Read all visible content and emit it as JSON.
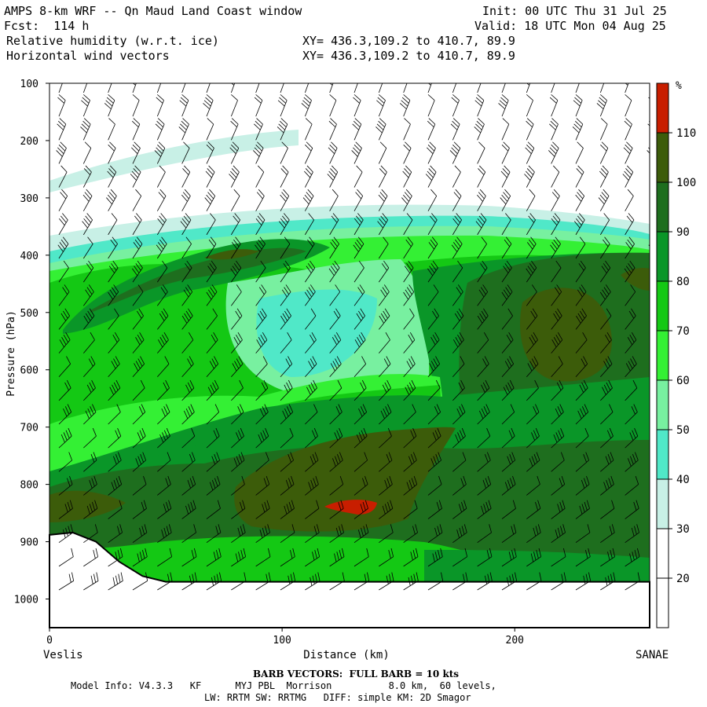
{
  "header": {
    "title": "AMPS 8-km WRF -- Qn Maud Land Coast window",
    "fcst": "Fcst:  114 h",
    "init": "Init: 00 UTC Thu 31 Jul 25",
    "valid": "Valid: 18 UTC Mon 04 Aug 25",
    "field1": "Relative humidity (w.r.t. ice)",
    "field2": "Horizontal wind vectors",
    "xy1": "XY= 436.3,109.2 to 410.7, 89.9",
    "xy2": "XY= 436.3,109.2 to 410.7, 89.9"
  },
  "chart_data": {
    "type": "filled-contour cross-section",
    "xlabel": "Distance (km)",
    "ylabel": "Pressure (hPa)",
    "x_start_label": "Veslis",
    "x_end_label": "SANAE",
    "xlim": [
      0,
      258
    ],
    "ylim": [
      1050,
      100
    ],
    "x_ticks": [
      0,
      100,
      200
    ],
    "y_ticks": [
      100,
      200,
      300,
      400,
      500,
      600,
      700,
      800,
      900,
      1000
    ],
    "colorbar": {
      "unit": "%",
      "levels": [
        20,
        30,
        40,
        50,
        60,
        70,
        80,
        90,
        100,
        110
      ],
      "colors": [
        "#ffffff",
        "#ffffff",
        "#c8f0e6",
        "#50e8c8",
        "#78f0a0",
        "#34f034",
        "#14c814",
        "#0a9628",
        "#1e6e1e",
        "#3c5c0a",
        "#c81e00"
      ]
    },
    "terrain_surface_hpa": [
      [
        0,
        888
      ],
      [
        10,
        884
      ],
      [
        20,
        900
      ],
      [
        30,
        935
      ],
      [
        40,
        960
      ],
      [
        50,
        970
      ],
      [
        100,
        970
      ],
      [
        150,
        970
      ],
      [
        258,
        970
      ]
    ],
    "wind_barbs": "full barb = 10 kts"
  },
  "footer": {
    "barb_note": "BARB VECTORS:  FULL BARB = 10 kts",
    "model_info": "Model Info: V4.3.3   KF      MYJ PBL  Morrison          8.0 km,  60 levels,",
    "model_info2": "LW: RRTM SW: RRTMG   DIFF: simple KM: 2D Smagor"
  }
}
